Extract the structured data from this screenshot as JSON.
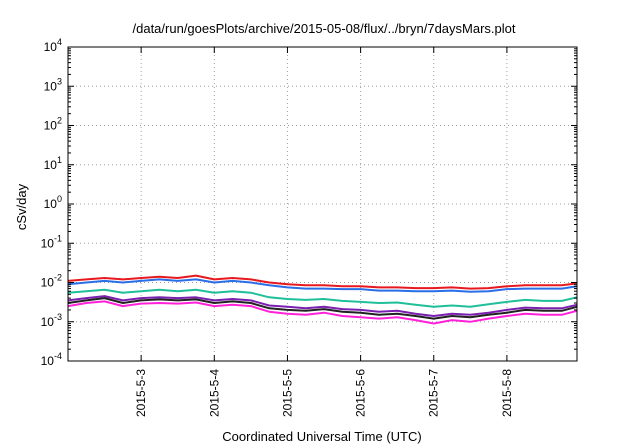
{
  "chart_data": {
    "type": "line",
    "title": "/data/run/goesPlots/archive/2015-05-08/flux/../bryn/7daysMars.plot",
    "xlabel": "Coordinated Universal Time (UTC)",
    "ylabel": "cSv/day",
    "yscale": "log",
    "ylim": [
      0.0001,
      10000
    ],
    "xlim": [
      "2015-05-02T00:00",
      "2015-05-08T23:00"
    ],
    "yticks": [
      {
        "base": "10",
        "exp": "-4"
      },
      {
        "base": "10",
        "exp": "-3"
      },
      {
        "base": "10",
        "exp": "-2"
      },
      {
        "base": "10",
        "exp": "-1"
      },
      {
        "base": "10",
        "exp": "0"
      },
      {
        "base": "10",
        "exp": "1"
      },
      {
        "base": "10",
        "exp": "2"
      },
      {
        "base": "10",
        "exp": "3"
      },
      {
        "base": "10",
        "exp": "4"
      }
    ],
    "xticks": [
      "2015-5-3",
      "2015-5-4",
      "2015-5-5",
      "2015-5-6",
      "2015-5-7",
      "2015-5-8"
    ],
    "grid": true,
    "legend": "none",
    "x": [
      "2015-05-02T00:00",
      "2015-05-02T06:00",
      "2015-05-02T12:00",
      "2015-05-02T18:00",
      "2015-05-03T00:00",
      "2015-05-03T06:00",
      "2015-05-03T12:00",
      "2015-05-03T18:00",
      "2015-05-04T00:00",
      "2015-05-04T06:00",
      "2015-05-04T12:00",
      "2015-05-04T18:00",
      "2015-05-05T00:00",
      "2015-05-05T06:00",
      "2015-05-05T12:00",
      "2015-05-05T18:00",
      "2015-05-06T00:00",
      "2015-05-06T06:00",
      "2015-05-06T12:00",
      "2015-05-06T18:00",
      "2015-05-07T00:00",
      "2015-05-07T06:00",
      "2015-05-07T12:00",
      "2015-05-07T18:00",
      "2015-05-08T00:00",
      "2015-05-08T06:00",
      "2015-05-08T12:00",
      "2015-05-08T18:00",
      "2015-05-08T23:00"
    ],
    "series": [
      {
        "color": "#e8191e",
        "values": [
          0.011,
          0.012,
          0.013,
          0.012,
          0.013,
          0.014,
          0.013,
          0.015,
          0.012,
          0.013,
          0.012,
          0.01,
          0.009,
          0.0085,
          0.0085,
          0.008,
          0.008,
          0.0075,
          0.0075,
          0.0072,
          0.0072,
          0.0075,
          0.007,
          0.0072,
          0.008,
          0.0085,
          0.0085,
          0.0085,
          0.0095
        ]
      },
      {
        "color": "#2a6ee8",
        "values": [
          0.009,
          0.01,
          0.011,
          0.01,
          0.011,
          0.012,
          0.011,
          0.012,
          0.01,
          0.011,
          0.01,
          0.0085,
          0.0075,
          0.007,
          0.007,
          0.0068,
          0.0068,
          0.0062,
          0.0062,
          0.006,
          0.006,
          0.0062,
          0.0058,
          0.006,
          0.0068,
          0.007,
          0.007,
          0.007,
          0.008
        ]
      },
      {
        "color": "#1fbf9a",
        "values": [
          0.0055,
          0.006,
          0.0065,
          0.0055,
          0.006,
          0.0065,
          0.006,
          0.0065,
          0.0055,
          0.006,
          0.0055,
          0.0042,
          0.0038,
          0.0036,
          0.0038,
          0.0034,
          0.0032,
          0.003,
          0.0031,
          0.0027,
          0.0024,
          0.0026,
          0.0024,
          0.0028,
          0.0032,
          0.0036,
          0.0034,
          0.0034,
          0.0042
        ]
      },
      {
        "color": "#7a1fb0",
        "values": [
          0.0035,
          0.004,
          0.0045,
          0.0035,
          0.004,
          0.0042,
          0.004,
          0.0042,
          0.0035,
          0.0038,
          0.0035,
          0.0026,
          0.0024,
          0.0022,
          0.0024,
          0.0021,
          0.002,
          0.0018,
          0.0019,
          0.0016,
          0.0014,
          0.0016,
          0.0015,
          0.0017,
          0.002,
          0.0023,
          0.0022,
          0.0022,
          0.0027
        ]
      },
      {
        "color": "#222222",
        "values": [
          0.003,
          0.0035,
          0.004,
          0.003,
          0.0035,
          0.0037,
          0.0035,
          0.0037,
          0.003,
          0.0033,
          0.003,
          0.0022,
          0.002,
          0.0019,
          0.0021,
          0.0018,
          0.0017,
          0.0015,
          0.0016,
          0.0014,
          0.0012,
          0.0014,
          0.0013,
          0.0015,
          0.0017,
          0.002,
          0.0019,
          0.0019,
          0.0024
        ]
      },
      {
        "color": "#ff22d8",
        "values": [
          0.0025,
          0.003,
          0.0033,
          0.0025,
          0.0029,
          0.003,
          0.0029,
          0.0031,
          0.0025,
          0.0027,
          0.0025,
          0.0018,
          0.0016,
          0.0015,
          0.0017,
          0.0014,
          0.0013,
          0.0012,
          0.0013,
          0.0011,
          0.0009,
          0.0011,
          0.001,
          0.0012,
          0.0014,
          0.0016,
          0.0015,
          0.0015,
          0.0019
        ]
      }
    ]
  }
}
